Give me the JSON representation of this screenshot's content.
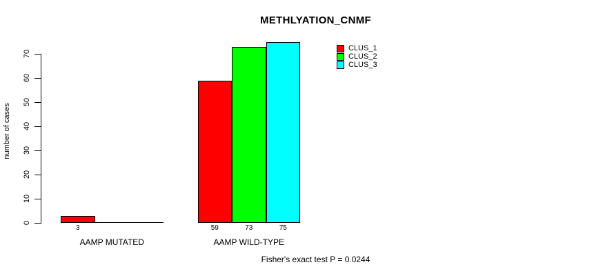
{
  "chart_data": {
    "type": "bar",
    "title": "METHLYATION_CNMF",
    "ylabel": "number of cases",
    "ylim": [
      0,
      70
    ],
    "yticks": [
      0,
      10,
      20,
      30,
      40,
      50,
      60,
      70
    ],
    "grid": false,
    "legend_position": "top-right-inside",
    "categories": [
      "AAMP MUTATED",
      "AAMP WILD-TYPE"
    ],
    "series": [
      {
        "name": "CLUS_1",
        "color": "#FF0000",
        "values": [
          3,
          59
        ]
      },
      {
        "name": "CLUS_2",
        "color": "#00FF00",
        "values": [
          0,
          73
        ]
      },
      {
        "name": "CLUS_3",
        "color": "#00FFFF",
        "values": [
          0,
          75
        ]
      }
    ],
    "bar_value_labels": [
      [
        "3",
        "",
        ""
      ],
      [
        "59",
        "73",
        "75"
      ]
    ],
    "annotation": "Fisher's exact test P = 0.0244"
  }
}
